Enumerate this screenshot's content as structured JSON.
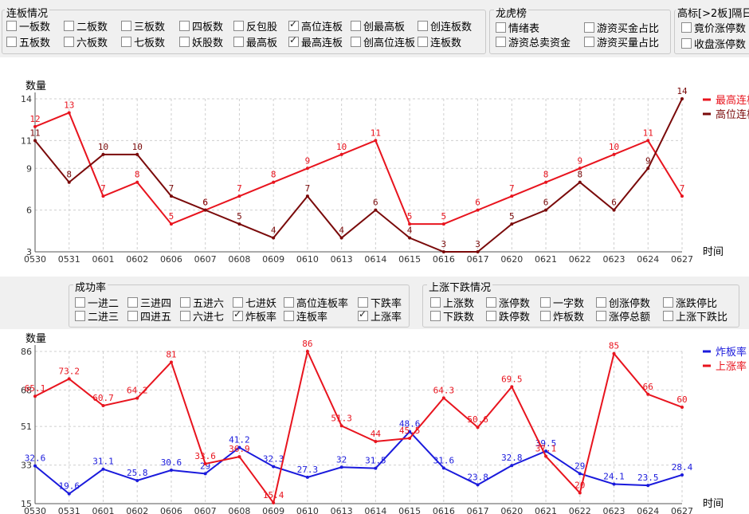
{
  "top_panel": {
    "lianban": {
      "title": "连板情况",
      "items": [
        {
          "label": "一板数",
          "checked": false
        },
        {
          "label": "二板数",
          "checked": false
        },
        {
          "label": "三板数",
          "checked": false
        },
        {
          "label": "四板数",
          "checked": false
        },
        {
          "label": "反包股",
          "checked": false
        },
        {
          "label": "高位连板",
          "checked": true
        },
        {
          "label": "创最高板",
          "checked": false
        },
        {
          "label": "创连板数",
          "checked": false
        },
        {
          "label": "五板数",
          "checked": false
        },
        {
          "label": "六板数",
          "checked": false
        },
        {
          "label": "七板数",
          "checked": false
        },
        {
          "label": "妖股数",
          "checked": false
        },
        {
          "label": "最高板",
          "checked": false
        },
        {
          "label": "最高连板",
          "checked": true
        },
        {
          "label": "创高位连板",
          "checked": false
        },
        {
          "label": "连板数",
          "checked": false
        }
      ]
    },
    "longhu": {
      "title": "龙虎榜",
      "items": [
        {
          "label": "情绪表",
          "checked": false
        },
        {
          "label": "游资买金占比",
          "checked": false
        },
        {
          "label": "游资总卖资金",
          "checked": false
        },
        {
          "label": "游资买量占比",
          "checked": false
        }
      ]
    },
    "gaobiao": {
      "title": "高标[>2板]隔日",
      "items": [
        {
          "label": "竟价涨停数",
          "checked": false
        },
        {
          "label": "收盘涨停数",
          "checked": false
        }
      ]
    }
  },
  "chart1": {
    "ylabel": "数量",
    "xlabel": "时间",
    "legend": [
      "最高连板",
      "高位连板数"
    ]
  },
  "mid_panel": {
    "chenggong": {
      "title": "成功率",
      "items": [
        {
          "label": "一进二",
          "checked": false
        },
        {
          "label": "三进四",
          "checked": false
        },
        {
          "label": "五进六",
          "checked": false
        },
        {
          "label": "七进妖",
          "checked": false
        },
        {
          "label": "高位连板率",
          "checked": false
        },
        {
          "label": "下跌率",
          "checked": false
        },
        {
          "label": "二进三",
          "checked": false
        },
        {
          "label": "四进五",
          "checked": false
        },
        {
          "label": "六进七",
          "checked": false
        },
        {
          "label": "炸板率",
          "checked": true
        },
        {
          "label": "连板率",
          "checked": false
        },
        {
          "label": "上涨率",
          "checked": true
        }
      ]
    },
    "zhangdie": {
      "title": "上涨下跌情况",
      "items": [
        {
          "label": "上涨数",
          "checked": false
        },
        {
          "label": "涨停数",
          "checked": false
        },
        {
          "label": "一字数",
          "checked": false
        },
        {
          "label": "创涨停数",
          "checked": false
        },
        {
          "label": "涨跌停比",
          "checked": false
        },
        {
          "label": "下跌数",
          "checked": false
        },
        {
          "label": "跌停数",
          "checked": false
        },
        {
          "label": "炸板数",
          "checked": false
        },
        {
          "label": "涨停总额",
          "checked": false
        },
        {
          "label": "上涨下跌比",
          "checked": false
        }
      ]
    }
  },
  "chart2": {
    "ylabel": "数量",
    "xlabel": "时间",
    "legend": [
      "炸板率",
      "上涨率"
    ]
  },
  "chart_data": [
    {
      "type": "line",
      "x": [
        "0530",
        "0531",
        "0601",
        "0602",
        "0606",
        "0607",
        "0608",
        "0609",
        "0610",
        "0613",
        "0614",
        "0615",
        "0616",
        "0617",
        "0620",
        "0621",
        "0622",
        "0623",
        "0624",
        "0627"
      ],
      "ylim": [
        3,
        14
      ],
      "yticks": [
        3,
        6,
        9,
        11,
        14
      ],
      "xlabel": "时间",
      "ylabel": "数量",
      "grid": true,
      "legend_position": "top-right",
      "series": [
        {
          "name": "最高连板",
          "color": "#e8141e",
          "values": [
            12,
            13,
            7,
            8,
            5,
            6,
            7,
            8,
            9,
            10,
            11,
            5,
            5,
            6,
            7,
            8,
            9,
            10,
            11,
            7
          ]
        },
        {
          "name": "高位连板数",
          "color": "#7a0a0a",
          "values": [
            11,
            8,
            10,
            10,
            7,
            6,
            5,
            4,
            7,
            4,
            6,
            4,
            3,
            3,
            5,
            6,
            8,
            6,
            9,
            14
          ]
        }
      ]
    },
    {
      "type": "line",
      "x": [
        "0530",
        "0531",
        "0601",
        "0602",
        "0606",
        "0607",
        "0608",
        "0609",
        "0610",
        "0613",
        "0614",
        "0615",
        "0616",
        "0617",
        "0620",
        "0621",
        "0622",
        "0623",
        "0624",
        "0627"
      ],
      "ylim": [
        15,
        86
      ],
      "yticks": [
        15,
        33,
        51,
        68,
        86
      ],
      "xlabel": "时间",
      "ylabel": "数量",
      "grid": true,
      "legend_position": "top-right",
      "series": [
        {
          "name": "炸板率",
          "color": "#1a1adc",
          "values": [
            32.6,
            19.6,
            31.1,
            25.8,
            30.6,
            29,
            41.2,
            32.3,
            27.3,
            32,
            31.5,
            48.6,
            31.6,
            23.8,
            32.8,
            39.5,
            29,
            24.1,
            23.5,
            28.4
          ]
        },
        {
          "name": "上涨率",
          "color": "#e8141e",
          "values": [
            65.1,
            73.2,
            60.7,
            64.2,
            81,
            33.6,
            36.9,
            15.4,
            86,
            51.3,
            44,
            45.5,
            64.3,
            50.6,
            69.5,
            37.1,
            20,
            85,
            66,
            60
          ]
        }
      ]
    }
  ]
}
